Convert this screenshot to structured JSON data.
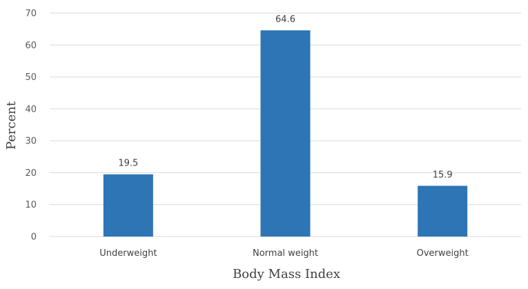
{
  "chart_data": {
    "type": "bar",
    "categories": [
      "Underweight",
      "Normal weight",
      "Overweight"
    ],
    "values": [
      19.5,
      64.6,
      15.9
    ],
    "data_labels": [
      "19.5",
      "64.6",
      "15.9"
    ],
    "title": "",
    "xlabel": "Body Mass Index",
    "ylabel": "Percent",
    "ylim": [
      0,
      70
    ],
    "yticks": [
      "0",
      "10",
      "20",
      "30",
      "40",
      "50",
      "60",
      "70"
    ],
    "grid": true,
    "legend": "none",
    "bar_color": "#2e75b6"
  }
}
